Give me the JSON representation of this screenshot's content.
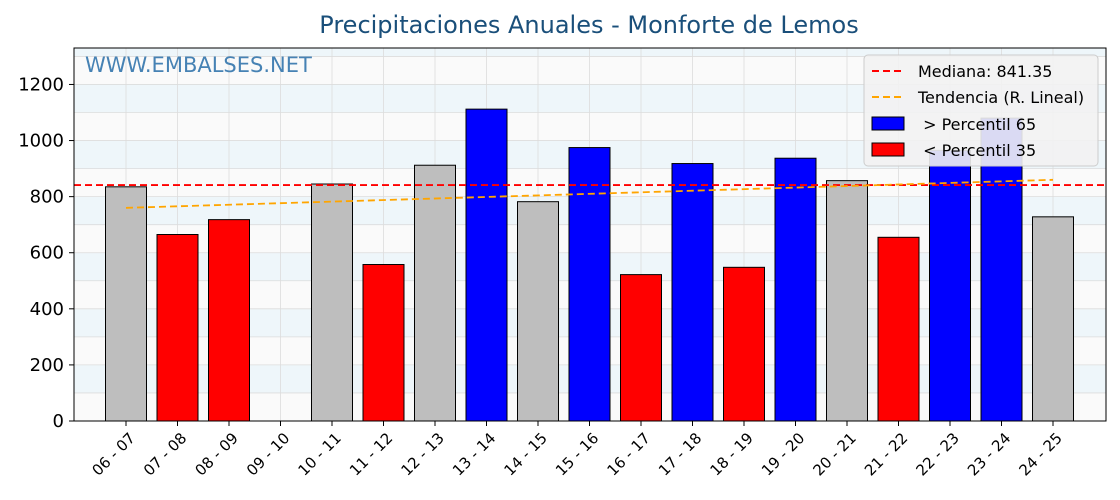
{
  "chart_data": {
    "type": "bar",
    "title": "Precipitaciones Anuales - Monforte de Lemos",
    "watermark": "WWW.EMBALSES.NET",
    "xlabel": "",
    "ylabel": "",
    "ylim": [
      0,
      1330
    ],
    "yticks": [
      0,
      200,
      400,
      600,
      800,
      1000,
      1200
    ],
    "grid": true,
    "legend_position": "top-right",
    "categories": [
      "06 - 07",
      "07 - 08",
      "08 - 09",
      "09 - 10",
      "10 - 11",
      "11 - 12",
      "12 - 13",
      "13 - 14",
      "14 - 15",
      "15 - 16",
      "16 - 17",
      "17 - 18",
      "18 - 19",
      "19 - 20",
      "20 - 21",
      "21 - 22",
      "22 - 23",
      "23 - 24",
      "24 - 25"
    ],
    "values": [
      835,
      665,
      718,
      0,
      845,
      558,
      912,
      1112,
      782,
      975,
      522,
      918,
      548,
      937,
      857,
      655,
      965,
      1080,
      728
    ],
    "classes": [
      "mid",
      "low",
      "low",
      "none",
      "mid",
      "low",
      "mid",
      "high",
      "mid",
      "high",
      "low",
      "high",
      "low",
      "high",
      "mid",
      "low",
      "high",
      "high",
      "mid"
    ],
    "median": {
      "label": "Mediana: 841.35",
      "value": 841.35
    },
    "trend": {
      "label": "Tendencia (R. Lineal)",
      "start": 760,
      "end": 860
    },
    "legend": [
      {
        "label": "Mediana: 841.35",
        "kind": "line",
        "color": "#ff0000",
        "dashed": true
      },
      {
        "label": "Tendencia (R. Lineal)",
        "kind": "line",
        "color": "#ffa500",
        "dashed": true
      },
      {
        "label": " > Percentil 65",
        "kind": "box",
        "color": "#0000ff"
      },
      {
        "label": " < Percentil 35",
        "kind": "box",
        "color": "#ff0000"
      }
    ],
    "colors": {
      "high": "#0000ff",
      "low": "#ff0000",
      "mid": "#bebebe",
      "none": "#bebebe",
      "title": "#1a4f7a",
      "watermark": "#4682b4",
      "median": "#ff0000",
      "trend": "#ffa500"
    }
  }
}
